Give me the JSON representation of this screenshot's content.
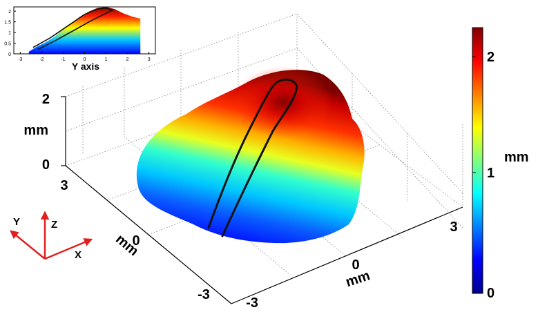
{
  "chart_data": [
    {
      "type": "surface",
      "description_units": "mm",
      "z_ticks": [
        "0",
        "2"
      ],
      "z_label": "mm",
      "y_ticks": [
        "-3",
        "0",
        "3"
      ],
      "y_label": "mm",
      "x_ticks": [
        "-3",
        "0",
        "3"
      ],
      "x_label": "mm",
      "zlim": [
        0,
        2.2
      ],
      "colorbar": {
        "ticks": [
          "0",
          "1",
          "2"
        ],
        "label": "mm",
        "range": [
          0,
          2.2
        ],
        "colormap": "jet"
      },
      "peak_height": 2.2,
      "grid": true
    },
    {
      "type": "area",
      "name": "inset",
      "xlabel": "Y axis",
      "x_ticks": [
        "-3",
        "-2",
        "-1",
        "0",
        "1",
        "2",
        "3"
      ],
      "y_ticks": [
        "0",
        "0.5",
        "1",
        "1.5",
        "2"
      ],
      "xlim": [
        -3.3,
        3.3
      ],
      "ylim": [
        0,
        2.2
      ],
      "x": [
        -2.6,
        -2.2,
        -1.8,
        -1.4,
        -1.0,
        -0.6,
        -0.2,
        0.2,
        0.6,
        1.0,
        1.4,
        1.8,
        2.2,
        2.6
      ],
      "y": [
        0.1,
        0.35,
        0.55,
        0.8,
        1.15,
        1.45,
        1.75,
        1.98,
        2.15,
        2.2,
        2.1,
        1.9,
        1.75,
        1.65
      ]
    }
  ],
  "axes_icon": {
    "x": "X",
    "y": "Y",
    "z": "Z"
  },
  "colors": {
    "trace": "#111111",
    "arrow": "#e02020"
  }
}
